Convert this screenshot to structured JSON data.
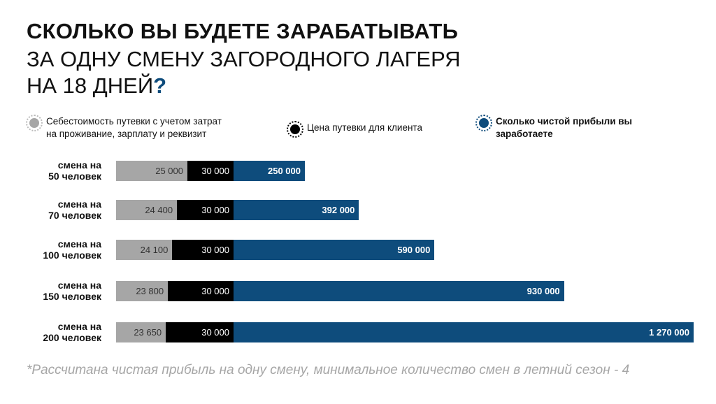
{
  "chart_data": {
    "type": "bar",
    "stacked": true,
    "orientation": "horizontal",
    "title_line1": "СКОЛЬКО ВЫ БУДЕТЕ ЗАРАБАТЫВАТЬ",
    "title_line2": "ЗА ОДНУ СМЕНУ ЗАГОРОДНОГО ЛАГЕРЯ",
    "title_line3": "НА 18 ДНЕЙ",
    "title_mark": "?",
    "legend": [
      {
        "line1": "Себестоимость путевки с учетом затрат",
        "line2": "на проживание, зарплату и реквизит",
        "color": "#a6a6a6"
      },
      {
        "line1": "Цена путевки для клиента",
        "line2": "",
        "color": "#000000"
      },
      {
        "line1": "Сколько чистой прибыли вы",
        "line2": "заработаете",
        "color": "#0e4c7c"
      }
    ],
    "categories": [
      {
        "line1": "смена на",
        "line2": "50 человек"
      },
      {
        "line1": "смена на",
        "line2": "70 человек"
      },
      {
        "line1": "смена на",
        "line2": "100 человек"
      },
      {
        "line1": "смена на",
        "line2": "150 человек"
      },
      {
        "line1": "смена на",
        "line2": "200 человек"
      }
    ],
    "series": [
      {
        "name": "Себестоимость",
        "values": [
          25000,
          24400,
          24100,
          23800,
          23650
        ],
        "labels": [
          "25 000",
          "24 400",
          "24 100",
          "23 800",
          "23 650"
        ]
      },
      {
        "name": "Цена путевки",
        "values": [
          30000,
          30000,
          30000,
          30000,
          30000
        ],
        "labels": [
          "30 000",
          "30 000",
          "30 000",
          "30 000",
          "30 000"
        ]
      },
      {
        "name": "Чистая прибыль",
        "values": [
          250000,
          392000,
          590000,
          930000,
          1270000
        ],
        "labels": [
          "250 000",
          "392 000",
          "590 000",
          "930 000",
          "1 270 000"
        ]
      }
    ],
    "footnote": "*Рассчитана чистая прибыль на одну смену, минимальное количество смен в летний сезон - 4"
  }
}
